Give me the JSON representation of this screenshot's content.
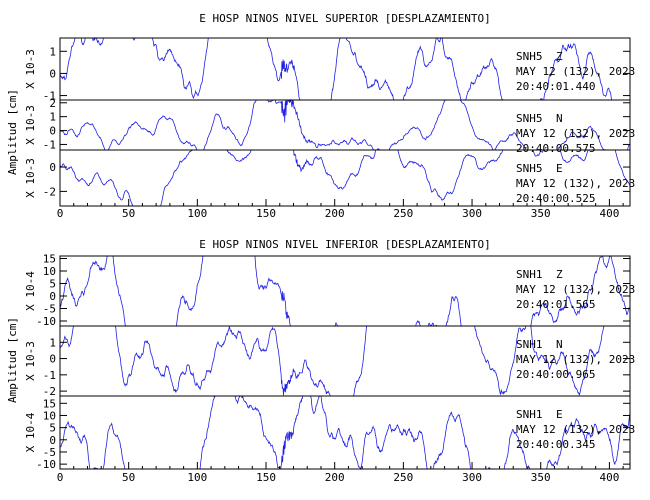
{
  "trace_color": "#1f1fe6",
  "chart_data": [
    {
      "type": "line",
      "title": "E HOSP NINOS NIVEL SUPERIOR [DESPLAZAMIENTO]",
      "ylabel": "Amplitud [cm]",
      "x_ticks": [
        0,
        50,
        100,
        150,
        200,
        250,
        300,
        350,
        400
      ],
      "xlim": [
        0,
        415
      ],
      "series": [
        {
          "name": "SNH5 Z",
          "station": "SNH5",
          "component": "Z",
          "date": "MAY 12 (132), 2023",
          "time": "20:40:01.440",
          "scale": "X 10-3",
          "ylim": [
            -1.2,
            1.6
          ],
          "y_ticks": [
            -1,
            0,
            1
          ],
          "start": 0.0,
          "event": 163,
          "noise": 0.5,
          "burst": 0.4
        },
        {
          "name": "SNH5 N",
          "station": "SNH5",
          "component": "N",
          "date": "MAY 12 (132), 2023",
          "time": "20:40:00.575",
          "scale": "X 10-3",
          "ylim": [
            -1.4,
            2.2
          ],
          "y_ticks": [
            -1,
            0,
            1,
            2
          ],
          "start": 0.0,
          "event": 163,
          "noise": 0.35,
          "burst": 1.1
        },
        {
          "name": "SNH5 E",
          "station": "SNH5",
          "component": "E",
          "date": "MAY 12 (132), 2023",
          "time": "20:40:00.525",
          "scale": "X 10-3",
          "ylim": [
            -3.2,
            1.4
          ],
          "y_ticks": [
            -2,
            0
          ],
          "start": 0.2,
          "event": 163,
          "noise": 0.45,
          "burst": 1.6
        }
      ]
    },
    {
      "type": "line",
      "title": "E HOSP NINOS NIVEL INFERIOR [DESPLAZAMIENTO]",
      "ylabel": "Amplitud [cm]",
      "x_ticks": [
        0,
        50,
        100,
        150,
        200,
        250,
        300,
        350,
        400
      ],
      "xlim": [
        0,
        415
      ],
      "series": [
        {
          "name": "SNH1 Z",
          "station": "SNH1",
          "component": "Z",
          "date": "MAY 12 (132), 2023",
          "time": "20:40:01.565",
          "scale": "X 10-4",
          "ylim": [
            -12,
            16
          ],
          "y_ticks": [
            -10,
            -5,
            0,
            5,
            10,
            15
          ],
          "start": -3,
          "event": 163,
          "noise": 5,
          "burst": 3
        },
        {
          "name": "SNH1 N",
          "station": "SNH1",
          "component": "N",
          "date": "MAY 12 (132), 2023",
          "time": "20:40:00.965",
          "scale": "X 10-3",
          "ylim": [
            -2.3,
            2.0
          ],
          "y_ticks": [
            -2,
            -1,
            0,
            1
          ],
          "start": 0.5,
          "event": 163,
          "noise": 0.7,
          "burst": 0.4
        },
        {
          "name": "SNH1 E",
          "station": "SNH1",
          "component": "E",
          "date": "MAY 12 (132), 2023",
          "time": "20:40:00.345",
          "scale": "X 10-4",
          "ylim": [
            -12,
            18
          ],
          "y_ticks": [
            -10,
            -5,
            0,
            5,
            10,
            15
          ],
          "start": -3,
          "event": 163,
          "noise": 5,
          "burst": 4
        }
      ]
    }
  ]
}
